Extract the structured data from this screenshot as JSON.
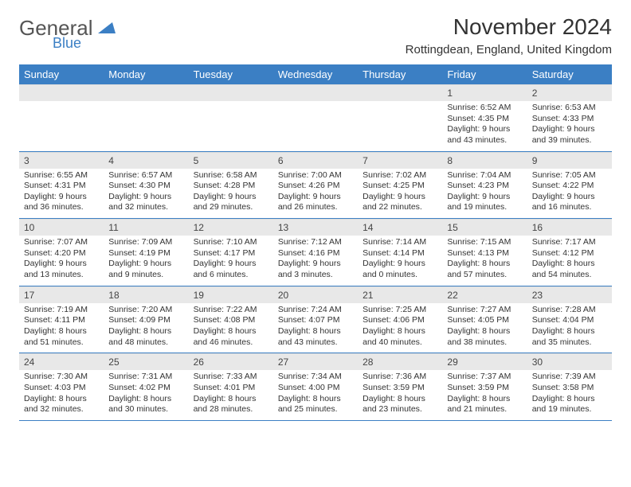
{
  "logo": {
    "text_top": "General",
    "text_bottom": "Blue",
    "shape_color": "#3b7fc4"
  },
  "header": {
    "title": "November 2024",
    "location": "Rottingdean, England, United Kingdom"
  },
  "colors": {
    "header_bg": "#3b7fc4",
    "header_text": "#ffffff",
    "daynum_bg": "#e8e8e8",
    "border": "#3b7fc4",
    "body_text": "#333333"
  },
  "typography": {
    "title_fontsize": 28,
    "location_fontsize": 15,
    "dayhead_fontsize": 13,
    "daynum_fontsize": 12,
    "body_fontsize": 10.5
  },
  "day_names": [
    "Sunday",
    "Monday",
    "Tuesday",
    "Wednesday",
    "Thursday",
    "Friday",
    "Saturday"
  ],
  "weeks": [
    [
      {
        "num": "",
        "lines": []
      },
      {
        "num": "",
        "lines": []
      },
      {
        "num": "",
        "lines": []
      },
      {
        "num": "",
        "lines": []
      },
      {
        "num": "",
        "lines": []
      },
      {
        "num": "1",
        "lines": [
          "Sunrise: 6:52 AM",
          "Sunset: 4:35 PM",
          "Daylight: 9 hours and 43 minutes."
        ]
      },
      {
        "num": "2",
        "lines": [
          "Sunrise: 6:53 AM",
          "Sunset: 4:33 PM",
          "Daylight: 9 hours and 39 minutes."
        ]
      }
    ],
    [
      {
        "num": "3",
        "lines": [
          "Sunrise: 6:55 AM",
          "Sunset: 4:31 PM",
          "Daylight: 9 hours and 36 minutes."
        ]
      },
      {
        "num": "4",
        "lines": [
          "Sunrise: 6:57 AM",
          "Sunset: 4:30 PM",
          "Daylight: 9 hours and 32 minutes."
        ]
      },
      {
        "num": "5",
        "lines": [
          "Sunrise: 6:58 AM",
          "Sunset: 4:28 PM",
          "Daylight: 9 hours and 29 minutes."
        ]
      },
      {
        "num": "6",
        "lines": [
          "Sunrise: 7:00 AM",
          "Sunset: 4:26 PM",
          "Daylight: 9 hours and 26 minutes."
        ]
      },
      {
        "num": "7",
        "lines": [
          "Sunrise: 7:02 AM",
          "Sunset: 4:25 PM",
          "Daylight: 9 hours and 22 minutes."
        ]
      },
      {
        "num": "8",
        "lines": [
          "Sunrise: 7:04 AM",
          "Sunset: 4:23 PM",
          "Daylight: 9 hours and 19 minutes."
        ]
      },
      {
        "num": "9",
        "lines": [
          "Sunrise: 7:05 AM",
          "Sunset: 4:22 PM",
          "Daylight: 9 hours and 16 minutes."
        ]
      }
    ],
    [
      {
        "num": "10",
        "lines": [
          "Sunrise: 7:07 AM",
          "Sunset: 4:20 PM",
          "Daylight: 9 hours and 13 minutes."
        ]
      },
      {
        "num": "11",
        "lines": [
          "Sunrise: 7:09 AM",
          "Sunset: 4:19 PM",
          "Daylight: 9 hours and 9 minutes."
        ]
      },
      {
        "num": "12",
        "lines": [
          "Sunrise: 7:10 AM",
          "Sunset: 4:17 PM",
          "Daylight: 9 hours and 6 minutes."
        ]
      },
      {
        "num": "13",
        "lines": [
          "Sunrise: 7:12 AM",
          "Sunset: 4:16 PM",
          "Daylight: 9 hours and 3 minutes."
        ]
      },
      {
        "num": "14",
        "lines": [
          "Sunrise: 7:14 AM",
          "Sunset: 4:14 PM",
          "Daylight: 9 hours and 0 minutes."
        ]
      },
      {
        "num": "15",
        "lines": [
          "Sunrise: 7:15 AM",
          "Sunset: 4:13 PM",
          "Daylight: 8 hours and 57 minutes."
        ]
      },
      {
        "num": "16",
        "lines": [
          "Sunrise: 7:17 AM",
          "Sunset: 4:12 PM",
          "Daylight: 8 hours and 54 minutes."
        ]
      }
    ],
    [
      {
        "num": "17",
        "lines": [
          "Sunrise: 7:19 AM",
          "Sunset: 4:11 PM",
          "Daylight: 8 hours and 51 minutes."
        ]
      },
      {
        "num": "18",
        "lines": [
          "Sunrise: 7:20 AM",
          "Sunset: 4:09 PM",
          "Daylight: 8 hours and 48 minutes."
        ]
      },
      {
        "num": "19",
        "lines": [
          "Sunrise: 7:22 AM",
          "Sunset: 4:08 PM",
          "Daylight: 8 hours and 46 minutes."
        ]
      },
      {
        "num": "20",
        "lines": [
          "Sunrise: 7:24 AM",
          "Sunset: 4:07 PM",
          "Daylight: 8 hours and 43 minutes."
        ]
      },
      {
        "num": "21",
        "lines": [
          "Sunrise: 7:25 AM",
          "Sunset: 4:06 PM",
          "Daylight: 8 hours and 40 minutes."
        ]
      },
      {
        "num": "22",
        "lines": [
          "Sunrise: 7:27 AM",
          "Sunset: 4:05 PM",
          "Daylight: 8 hours and 38 minutes."
        ]
      },
      {
        "num": "23",
        "lines": [
          "Sunrise: 7:28 AM",
          "Sunset: 4:04 PM",
          "Daylight: 8 hours and 35 minutes."
        ]
      }
    ],
    [
      {
        "num": "24",
        "lines": [
          "Sunrise: 7:30 AM",
          "Sunset: 4:03 PM",
          "Daylight: 8 hours and 32 minutes."
        ]
      },
      {
        "num": "25",
        "lines": [
          "Sunrise: 7:31 AM",
          "Sunset: 4:02 PM",
          "Daylight: 8 hours and 30 minutes."
        ]
      },
      {
        "num": "26",
        "lines": [
          "Sunrise: 7:33 AM",
          "Sunset: 4:01 PM",
          "Daylight: 8 hours and 28 minutes."
        ]
      },
      {
        "num": "27",
        "lines": [
          "Sunrise: 7:34 AM",
          "Sunset: 4:00 PM",
          "Daylight: 8 hours and 25 minutes."
        ]
      },
      {
        "num": "28",
        "lines": [
          "Sunrise: 7:36 AM",
          "Sunset: 3:59 PM",
          "Daylight: 8 hours and 23 minutes."
        ]
      },
      {
        "num": "29",
        "lines": [
          "Sunrise: 7:37 AM",
          "Sunset: 3:59 PM",
          "Daylight: 8 hours and 21 minutes."
        ]
      },
      {
        "num": "30",
        "lines": [
          "Sunrise: 7:39 AM",
          "Sunset: 3:58 PM",
          "Daylight: 8 hours and 19 minutes."
        ]
      }
    ]
  ]
}
